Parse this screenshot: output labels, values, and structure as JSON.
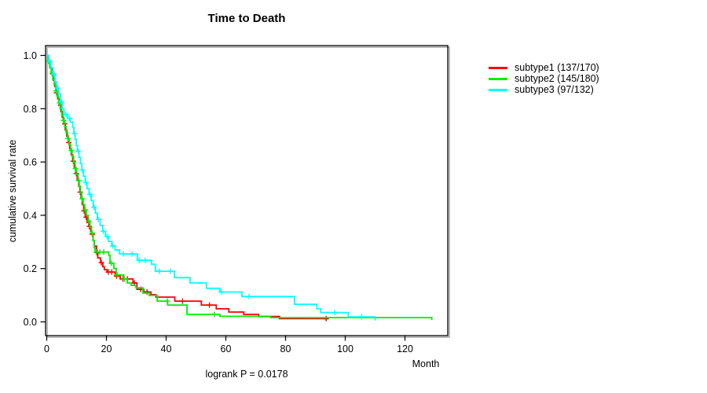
{
  "title": "Time to Death",
  "axes": {
    "x_label": "Month",
    "y_label": "cumulative survival rate"
  },
  "footnote": "logrank P = 0.0178",
  "legend": {
    "position": "right",
    "items": [
      {
        "label": "subtype1 (137/170)",
        "color": "#ff0000"
      },
      {
        "label": "subtype2 (145/180)",
        "color": "#00ee00"
      },
      {
        "label": "subtype3 (97/132)",
        "color": "#00ffff"
      }
    ]
  },
  "chart_data": {
    "type": "line",
    "subtype": "kaplan-meier-step-survival",
    "title": "Time to Death",
    "xlabel": "Month",
    "ylabel": "cumulative survival rate",
    "annotation": "logrank P = 0.0178",
    "xlim": [
      0,
      132
    ],
    "ylim": [
      0,
      1.04
    ],
    "grid": false,
    "x_ticks": [
      0,
      20,
      40,
      60,
      80,
      100,
      120
    ],
    "x_tick_labels": [
      "0",
      "20",
      "40",
      "60",
      "80",
      "100",
      "120"
    ],
    "y_ticks": [
      0,
      0.2,
      0.4,
      0.6,
      0.8,
      1
    ],
    "y_tick_labels": [
      "0.0",
      "0.2",
      "0.4",
      "0.6",
      "0.8",
      "1.0"
    ],
    "series": [
      {
        "name": "subtype1 (137/170)",
        "color": "#ff0000",
        "end": 94.3,
        "steps": [
          [
            0,
            1.0
          ],
          [
            0.6,
            0.977
          ],
          [
            1.1,
            0.953
          ],
          [
            1.7,
            0.93
          ],
          [
            2.2,
            0.907
          ],
          [
            2.7,
            0.883
          ],
          [
            3.2,
            0.86
          ],
          [
            3.7,
            0.837
          ],
          [
            4.2,
            0.813
          ],
          [
            4.7,
            0.79
          ],
          [
            5.2,
            0.767
          ],
          [
            5.7,
            0.743
          ],
          [
            6.2,
            0.72
          ],
          [
            6.7,
            0.697
          ],
          [
            7.2,
            0.673
          ],
          [
            7.7,
            0.65
          ],
          [
            8.2,
            0.627
          ],
          [
            8.7,
            0.603
          ],
          [
            9.2,
            0.58
          ],
          [
            9.7,
            0.557
          ],
          [
            10.2,
            0.533
          ],
          [
            10.7,
            0.51
          ],
          [
            11.1,
            0.487
          ],
          [
            11.5,
            0.463
          ],
          [
            11.9,
            0.44
          ],
          [
            12.4,
            0.417
          ],
          [
            12.9,
            0.393
          ],
          [
            13.5,
            0.373
          ],
          [
            14.1,
            0.358
          ],
          [
            14.7,
            0.34
          ],
          [
            15.1,
            0.329
          ],
          [
            15.5,
            0.305
          ],
          [
            15.9,
            0.284
          ],
          [
            16.7,
            0.26
          ],
          [
            17.1,
            0.24
          ],
          [
            18.0,
            0.222
          ],
          [
            18.8,
            0.207
          ],
          [
            19.3,
            0.196
          ],
          [
            20.2,
            0.187
          ],
          [
            22.9,
            0.172
          ],
          [
            24.6,
            0.161
          ],
          [
            28.9,
            0.146
          ],
          [
            30.2,
            0.122
          ],
          [
            32.5,
            0.112
          ],
          [
            34.9,
            0.102
          ],
          [
            36.6,
            0.093
          ],
          [
            42.9,
            0.078
          ],
          [
            51.8,
            0.063
          ],
          [
            56.8,
            0.049
          ],
          [
            61.0,
            0.037
          ],
          [
            66.0,
            0.028
          ],
          [
            71.0,
            0.02
          ],
          [
            78.0,
            0.012
          ]
        ],
        "censors": [
          0.9,
          2.1,
          3.3,
          4.6,
          6.1,
          7.4,
          8.9,
          9.9,
          11.2,
          12.5,
          13.2,
          14.3,
          15.3,
          16.9,
          18.3,
          20.6,
          21.8,
          23.4,
          25.5,
          27.0,
          29.4,
          31.5,
          33.6,
          45.5,
          54.5,
          93.6
        ]
      },
      {
        "name": "subtype2 (145/180)",
        "color": "#00ee00",
        "end": 129,
        "steps": [
          [
            0,
            1.0
          ],
          [
            0.5,
            0.978
          ],
          [
            1.0,
            0.956
          ],
          [
            1.5,
            0.933
          ],
          [
            2.0,
            0.911
          ],
          [
            2.5,
            0.889
          ],
          [
            3.0,
            0.867
          ],
          [
            3.5,
            0.845
          ],
          [
            4.0,
            0.822
          ],
          [
            4.5,
            0.8
          ],
          [
            5.0,
            0.778
          ],
          [
            5.5,
            0.756
          ],
          [
            6.0,
            0.733
          ],
          [
            6.5,
            0.71
          ],
          [
            7.0,
            0.688
          ],
          [
            7.5,
            0.665
          ],
          [
            8.0,
            0.643
          ],
          [
            8.5,
            0.62
          ],
          [
            9.0,
            0.598
          ],
          [
            9.5,
            0.575
          ],
          [
            10.0,
            0.553
          ],
          [
            10.5,
            0.53
          ],
          [
            10.9,
            0.508
          ],
          [
            11.3,
            0.485
          ],
          [
            11.7,
            0.462
          ],
          [
            12.2,
            0.44
          ],
          [
            12.7,
            0.42
          ],
          [
            13.3,
            0.4
          ],
          [
            13.9,
            0.378
          ],
          [
            14.5,
            0.355
          ],
          [
            15.0,
            0.333
          ],
          [
            15.5,
            0.305
          ],
          [
            15.9,
            0.278
          ],
          [
            16.2,
            0.262
          ],
          [
            20.8,
            0.249
          ],
          [
            21.2,
            0.22
          ],
          [
            22.5,
            0.2
          ],
          [
            23.3,
            0.176
          ],
          [
            25.7,
            0.161
          ],
          [
            27.0,
            0.146
          ],
          [
            28.3,
            0.137
          ],
          [
            29.9,
            0.128
          ],
          [
            32.2,
            0.108
          ],
          [
            34.3,
            0.099
          ],
          [
            37.0,
            0.078
          ],
          [
            40.5,
            0.063
          ],
          [
            47.0,
            0.028
          ],
          [
            58.0,
            0.021
          ],
          [
            75.0,
            0.016
          ],
          [
            129,
            0.007
          ]
        ],
        "censors": [
          0.6,
          1.8,
          3.1,
          4.3,
          5.6,
          7.1,
          8.3,
          9.6,
          10.7,
          11.9,
          12.9,
          14.1,
          15.2,
          16.6,
          17.8,
          19.1,
          21.6,
          23.6,
          26.0,
          40.4,
          56.2
        ]
      },
      {
        "name": "subtype3 (97/132)",
        "color": "#00ffff",
        "end": 110,
        "steps": [
          [
            0,
            1.0
          ],
          [
            0.7,
            0.977
          ],
          [
            1.4,
            0.954
          ],
          [
            2.1,
            0.93
          ],
          [
            2.8,
            0.9
          ],
          [
            3.4,
            0.877
          ],
          [
            4.0,
            0.854
          ],
          [
            4.6,
            0.825
          ],
          [
            5.2,
            0.8
          ],
          [
            5.8,
            0.779
          ],
          [
            6.9,
            0.764
          ],
          [
            7.9,
            0.75
          ],
          [
            8.7,
            0.73
          ],
          [
            9.1,
            0.707
          ],
          [
            9.5,
            0.685
          ],
          [
            9.9,
            0.662
          ],
          [
            10.3,
            0.64
          ],
          [
            10.8,
            0.617
          ],
          [
            11.3,
            0.594
          ],
          [
            11.8,
            0.57
          ],
          [
            12.3,
            0.547
          ],
          [
            12.9,
            0.523
          ],
          [
            13.5,
            0.5
          ],
          [
            14.2,
            0.478
          ],
          [
            14.9,
            0.455
          ],
          [
            15.6,
            0.43
          ],
          [
            16.3,
            0.408
          ],
          [
            17.0,
            0.385
          ],
          [
            17.9,
            0.362
          ],
          [
            18.8,
            0.34
          ],
          [
            19.7,
            0.32
          ],
          [
            20.7,
            0.302
          ],
          [
            21.8,
            0.285
          ],
          [
            22.9,
            0.27
          ],
          [
            24.4,
            0.255
          ],
          [
            30.4,
            0.231
          ],
          [
            35.1,
            0.216
          ],
          [
            36.4,
            0.19
          ],
          [
            42.8,
            0.166
          ],
          [
            48.0,
            0.146
          ],
          [
            53.5,
            0.126
          ],
          [
            58.0,
            0.112
          ],
          [
            65.4,
            0.095
          ],
          [
            83.0,
            0.066
          ],
          [
            90.5,
            0.049
          ],
          [
            91.8,
            0.035
          ],
          [
            101.0,
            0.019
          ],
          [
            110,
            0.005
          ]
        ],
        "censors": [
          1.1,
          2.4,
          3.7,
          5.0,
          6.4,
          7.6,
          9.3,
          10.6,
          11.9,
          13.1,
          14.5,
          15.9,
          17.3,
          18.9,
          20.3,
          22.1,
          25.7,
          28.6,
          31.0,
          33.0,
          37.8,
          41.4,
          58.5,
          67.8,
          96.5,
          105.5
        ]
      }
    ]
  }
}
